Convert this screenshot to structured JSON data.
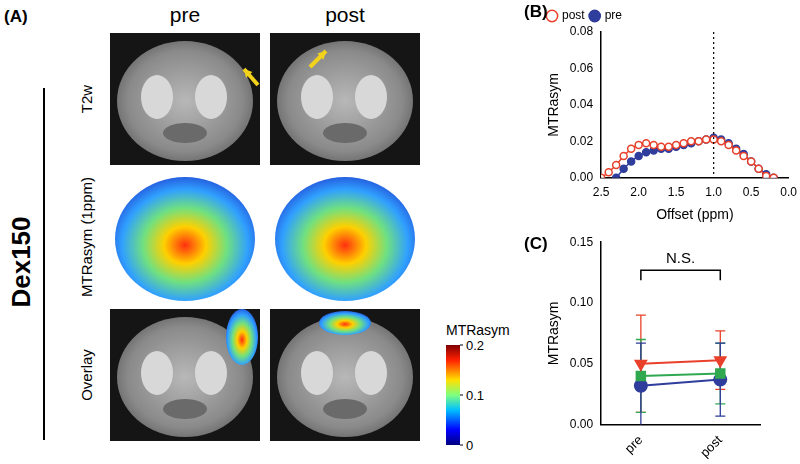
{
  "panel_a": {
    "label": "(A)",
    "group": "Dex150",
    "columns": [
      "pre",
      "post"
    ],
    "rows": [
      "T2w",
      "MTRasym (1ppm)",
      "Overlay"
    ],
    "colorbar": {
      "title": "MTRasym",
      "range": [
        0,
        0.2
      ],
      "ticks": [
        0.2,
        0.1,
        0
      ]
    }
  },
  "chart_data": [
    {
      "panel": "(B)",
      "type": "line",
      "x": [
        2.5,
        2.4,
        2.3,
        2.2,
        2.1,
        2.0,
        1.9,
        1.8,
        1.7,
        1.6,
        1.5,
        1.4,
        1.3,
        1.2,
        1.1,
        1.0,
        0.9,
        0.8,
        0.7,
        0.6,
        0.5,
        0.4,
        0.3,
        0.2
      ],
      "series": [
        {
          "name": "post",
          "color": "#e8402a",
          "marker": "open_circle",
          "values": [
            0,
            0.003,
            0.007,
            0.012,
            0.016,
            0.018,
            0.019,
            0.018,
            0.017,
            0.017,
            0.018,
            0.019,
            0.02,
            0.02,
            0.021,
            0.021,
            0.02,
            0.018,
            0.015,
            0.012,
            0.009,
            0.005,
            0.001,
            0
          ]
        },
        {
          "name": "pre",
          "color": "#2f3d9c",
          "marker": "circle",
          "values": [
            null,
            null,
            0,
            0.005,
            0.009,
            0.012,
            0.014,
            0.015,
            0.016,
            0.016,
            0.017,
            0.018,
            0.019,
            0.02,
            0.021,
            0.022,
            0.021,
            0.019,
            0.016,
            0.013,
            0.009,
            0.005,
            0.002,
            0
          ]
        }
      ],
      "x_label": "Offset (ppm)",
      "y_label": "MTRasym",
      "xlim": [
        2.5,
        0.0
      ],
      "xticks": [
        2.5,
        {
          "value": 2.0,
          "label": "2.0"
        },
        1.5,
        {
          "value": 1.0,
          "label": "1.0"
        },
        0.5,
        {
          "value": 0.0,
          "label": "0.0"
        }
      ],
      "ylim": [
        0,
        0.08
      ],
      "yticks": [
        {
          "value": 0,
          "label": "0.00"
        },
        {
          "value": 0.02,
          "label": "0.02"
        },
        {
          "value": 0.04,
          "label": "0.04"
        },
        {
          "value": 0.06,
          "label": "0.06"
        },
        {
          "value": 0.08,
          "label": "0.08"
        }
      ],
      "reference_lines": [
        {
          "x": 1.0,
          "line_style": "dotted"
        }
      ],
      "legend": "top left",
      "grid": false
    },
    {
      "panel": "(C)",
      "type": "line",
      "categories": [
        "pre",
        "post"
      ],
      "series": [
        {
          "color": "#e8402a",
          "marker": "triangle_down",
          "values": [
            0.05,
            0.053
          ],
          "errors": [
            0.04,
            0.024
          ]
        },
        {
          "color": "#2fa84f",
          "marker": "square",
          "values": [
            0.04,
            0.042
          ],
          "errors": [
            0.03,
            0.025
          ]
        },
        {
          "color": "#2f3d9c",
          "marker": "circle",
          "values": [
            0.032,
            0.037
          ],
          "errors": [
            0.035,
            0.03
          ]
        }
      ],
      "y_label": "MTRasym",
      "ylim": [
        0,
        0.15
      ],
      "yticks": [
        {
          "value": 0,
          "label": "0.00"
        },
        {
          "value": 0.05,
          "label": "0.05"
        },
        {
          "value": 0.1,
          "label": "0.10"
        },
        {
          "value": 0.15,
          "label": "0.15"
        }
      ],
      "annotation": "N.S.",
      "grid": false
    }
  ]
}
